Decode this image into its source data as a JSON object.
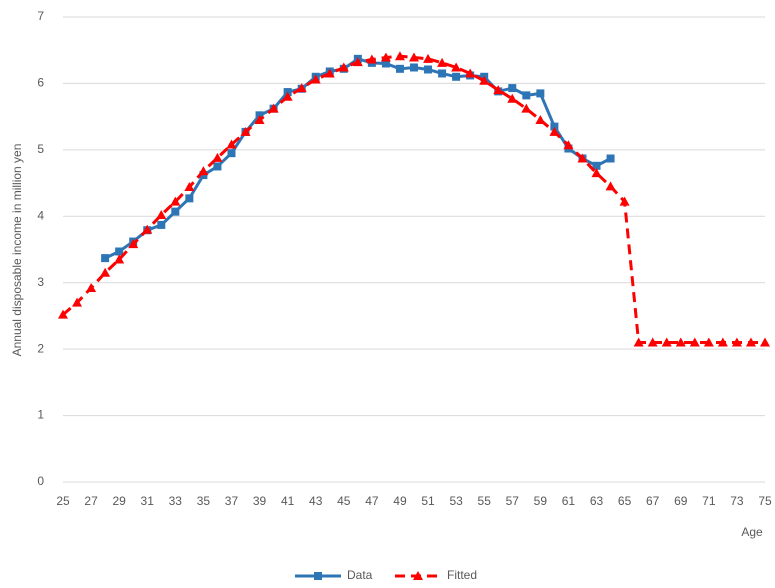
{
  "chart_data": {
    "type": "line",
    "y_label": "Annual disposable income in million yen",
    "x_label": "Age",
    "x": [
      25,
      26,
      27,
      28,
      29,
      30,
      31,
      32,
      33,
      34,
      35,
      36,
      37,
      38,
      39,
      40,
      41,
      42,
      43,
      44,
      45,
      46,
      47,
      48,
      49,
      50,
      51,
      52,
      53,
      54,
      55,
      56,
      57,
      58,
      59,
      60,
      61,
      62,
      63,
      64,
      65,
      66,
      67,
      68,
      69,
      70,
      71,
      72,
      73,
      74,
      75
    ],
    "xlim": [
      25,
      75
    ],
    "xticks": [
      25,
      27,
      29,
      31,
      33,
      35,
      37,
      39,
      41,
      43,
      45,
      47,
      49,
      51,
      53,
      55,
      57,
      59,
      61,
      63,
      65,
      67,
      69,
      71,
      73,
      75
    ],
    "ylim": [
      0,
      7
    ],
    "yticks": [
      0,
      1,
      2,
      3,
      4,
      5,
      6,
      7
    ],
    "grid": true,
    "legend": "bottom",
    "series": [
      {
        "name": "Data",
        "color": "#2e75b6",
        "marker": "square",
        "dashed": false,
        "values": [
          null,
          null,
          null,
          3.37,
          3.47,
          3.62,
          3.79,
          3.87,
          4.07,
          4.27,
          4.62,
          4.75,
          4.95,
          5.27,
          5.52,
          5.62,
          5.87,
          5.92,
          6.1,
          6.18,
          6.22,
          6.37,
          6.31,
          6.3,
          6.22,
          6.24,
          6.21,
          6.15,
          6.1,
          6.12,
          6.1,
          5.88,
          5.93,
          5.82,
          5.85,
          5.35,
          5.02,
          4.87,
          4.76,
          4.87,
          null,
          null,
          null,
          null,
          null,
          null,
          null,
          null,
          null,
          null,
          null
        ]
      },
      {
        "name": "Fitted",
        "color": "#ff0000",
        "marker": "triangle",
        "dashed": true,
        "values": [
          2.52,
          2.7,
          2.92,
          3.15,
          3.35,
          3.58,
          3.8,
          4.02,
          4.22,
          4.44,
          4.68,
          4.88,
          5.08,
          5.27,
          5.45,
          5.62,
          5.8,
          5.93,
          6.06,
          6.15,
          6.24,
          6.32,
          6.36,
          6.39,
          6.41,
          6.39,
          6.37,
          6.31,
          6.24,
          6.15,
          6.04,
          5.9,
          5.77,
          5.62,
          5.45,
          5.27,
          5.07,
          4.87,
          4.65,
          4.45,
          4.22,
          2.1,
          2.1,
          2.1,
          2.1,
          2.1,
          2.1,
          2.1,
          2.1,
          2.1,
          2.1
        ]
      }
    ]
  }
}
